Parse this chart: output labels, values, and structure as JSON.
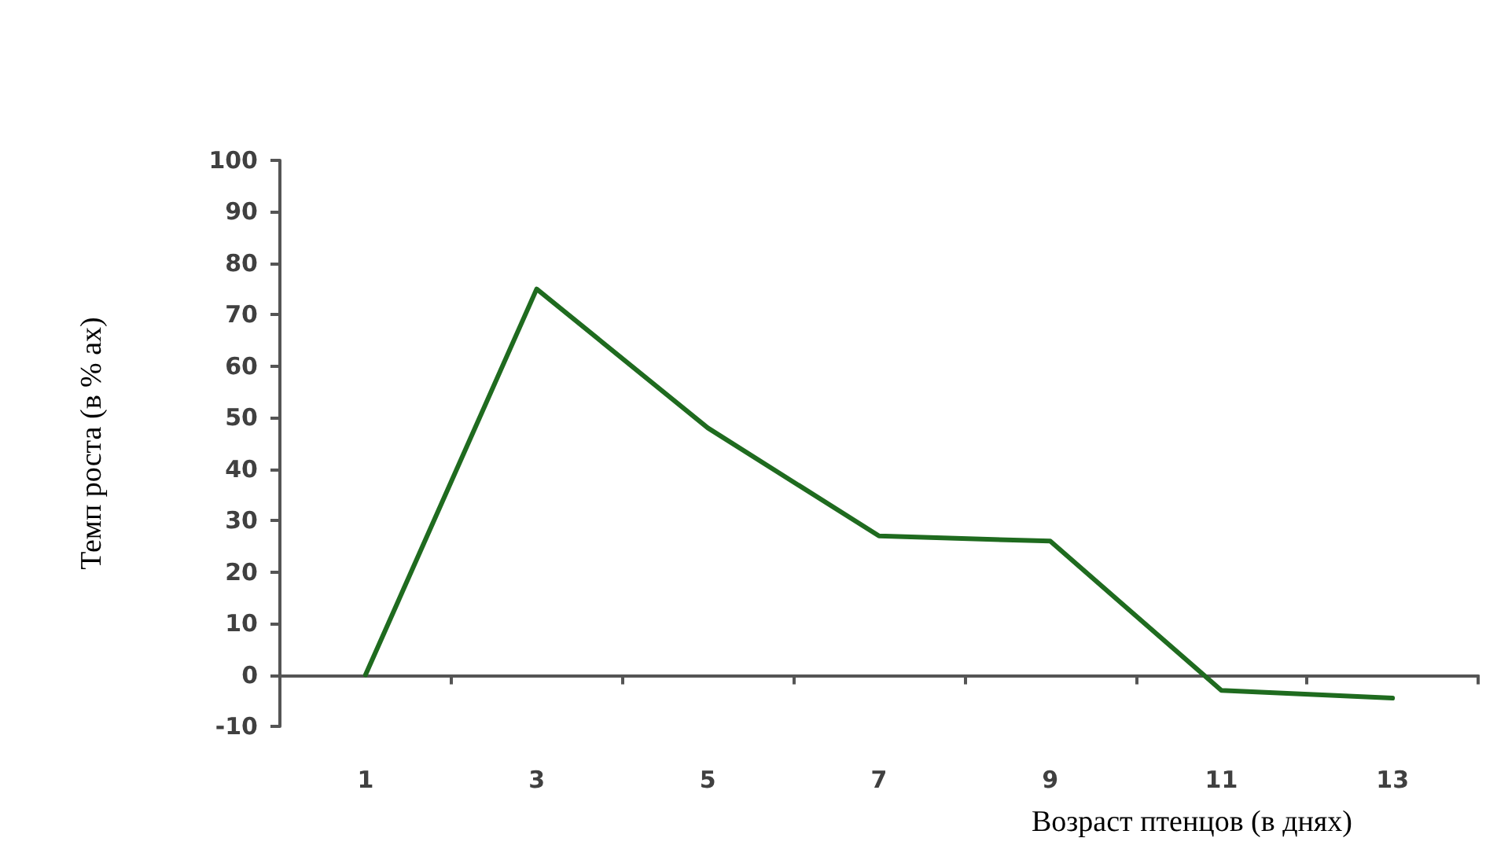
{
  "chart_data": {
    "type": "line",
    "xlabel": "Возраст птенцов (в днях)",
    "ylabel": "Темп роста (в % ах)",
    "categories": [
      "1",
      "3",
      "5",
      "7",
      "9",
      "11",
      "13"
    ],
    "series": [
      {
        "color": "#1f6b1f",
        "values": [
          0,
          75,
          48,
          27,
          26,
          -3,
          -4.5
        ]
      }
    ],
    "ylim": [
      -10,
      100
    ],
    "yticks": [
      -10,
      0,
      10,
      20,
      30,
      40,
      50,
      60,
      70,
      80,
      90,
      100
    ],
    "marker": "none",
    "line_style": "solid"
  }
}
